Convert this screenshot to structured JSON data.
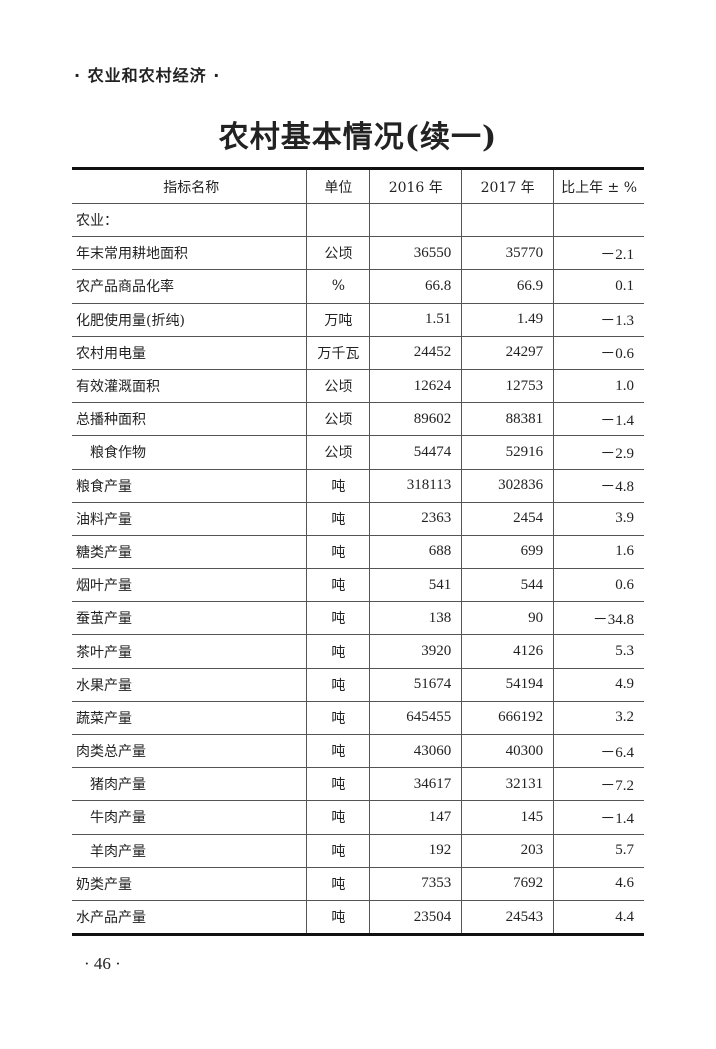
{
  "section_header": "· 农业和农村经济 ·",
  "title": "农村基本情况(续一)",
  "table": {
    "headers": [
      "指标名称",
      "单位",
      "2016 年",
      "2017 年",
      "比上年 ± %"
    ],
    "rows": [
      {
        "name": "农业：",
        "unit": "",
        "y2016": "",
        "y2017": "",
        "change": "",
        "indent": false
      },
      {
        "name": "年末常用耕地面积",
        "unit": "公顷",
        "y2016": "36550",
        "y2017": "35770",
        "change": "－2.1",
        "indent": false
      },
      {
        "name": "农产品商品化率",
        "unit": "%",
        "y2016": "66.8",
        "y2017": "66.9",
        "change": "0.1",
        "indent": false
      },
      {
        "name": "化肥使用量(折纯)",
        "unit": "万吨",
        "y2016": "1.51",
        "y2017": "1.49",
        "change": "－1.3",
        "indent": false
      },
      {
        "name": "农村用电量",
        "unit": "万千瓦",
        "y2016": "24452",
        "y2017": "24297",
        "change": "－0.6",
        "indent": false
      },
      {
        "name": "有效灌溉面积",
        "unit": "公顷",
        "y2016": "12624",
        "y2017": "12753",
        "change": "1.0",
        "indent": false
      },
      {
        "name": "总播种面积",
        "unit": "公顷",
        "y2016": "89602",
        "y2017": "88381",
        "change": "－1.4",
        "indent": false
      },
      {
        "name": "粮食作物",
        "unit": "公顷",
        "y2016": "54474",
        "y2017": "52916",
        "change": "－2.9",
        "indent": true
      },
      {
        "name": "粮食产量",
        "unit": "吨",
        "y2016": "318113",
        "y2017": "302836",
        "change": "－4.8",
        "indent": false
      },
      {
        "name": "油料产量",
        "unit": "吨",
        "y2016": "2363",
        "y2017": "2454",
        "change": "3.9",
        "indent": false
      },
      {
        "name": "糖类产量",
        "unit": "吨",
        "y2016": "688",
        "y2017": "699",
        "change": "1.6",
        "indent": false
      },
      {
        "name": "烟叶产量",
        "unit": "吨",
        "y2016": "541",
        "y2017": "544",
        "change": "0.6",
        "indent": false
      },
      {
        "name": "蚕茧产量",
        "unit": "吨",
        "y2016": "138",
        "y2017": "90",
        "change": "－34.8",
        "indent": false
      },
      {
        "name": "茶叶产量",
        "unit": "吨",
        "y2016": "3920",
        "y2017": "4126",
        "change": "5.3",
        "indent": false
      },
      {
        "name": "水果产量",
        "unit": "吨",
        "y2016": "51674",
        "y2017": "54194",
        "change": "4.9",
        "indent": false
      },
      {
        "name": "蔬菜产量",
        "unit": "吨",
        "y2016": "645455",
        "y2017": "666192",
        "change": "3.2",
        "indent": false
      },
      {
        "name": "肉类总产量",
        "unit": "吨",
        "y2016": "43060",
        "y2017": "40300",
        "change": "－6.4",
        "indent": false
      },
      {
        "name": "猪肉产量",
        "unit": "吨",
        "y2016": "34617",
        "y2017": "32131",
        "change": "－7.2",
        "indent": true
      },
      {
        "name": "牛肉产量",
        "unit": "吨",
        "y2016": "147",
        "y2017": "145",
        "change": "－1.4",
        "indent": true
      },
      {
        "name": "羊肉产量",
        "unit": "吨",
        "y2016": "192",
        "y2017": "203",
        "change": "5.7",
        "indent": true
      },
      {
        "name": "奶类产量",
        "unit": "吨",
        "y2016": "7353",
        "y2017": "7692",
        "change": "4.6",
        "indent": false
      },
      {
        "name": "水产品产量",
        "unit": "吨",
        "y2016": "23504",
        "y2017": "24543",
        "change": "4.4",
        "indent": false
      }
    ]
  },
  "page_number": "· 46 ·"
}
